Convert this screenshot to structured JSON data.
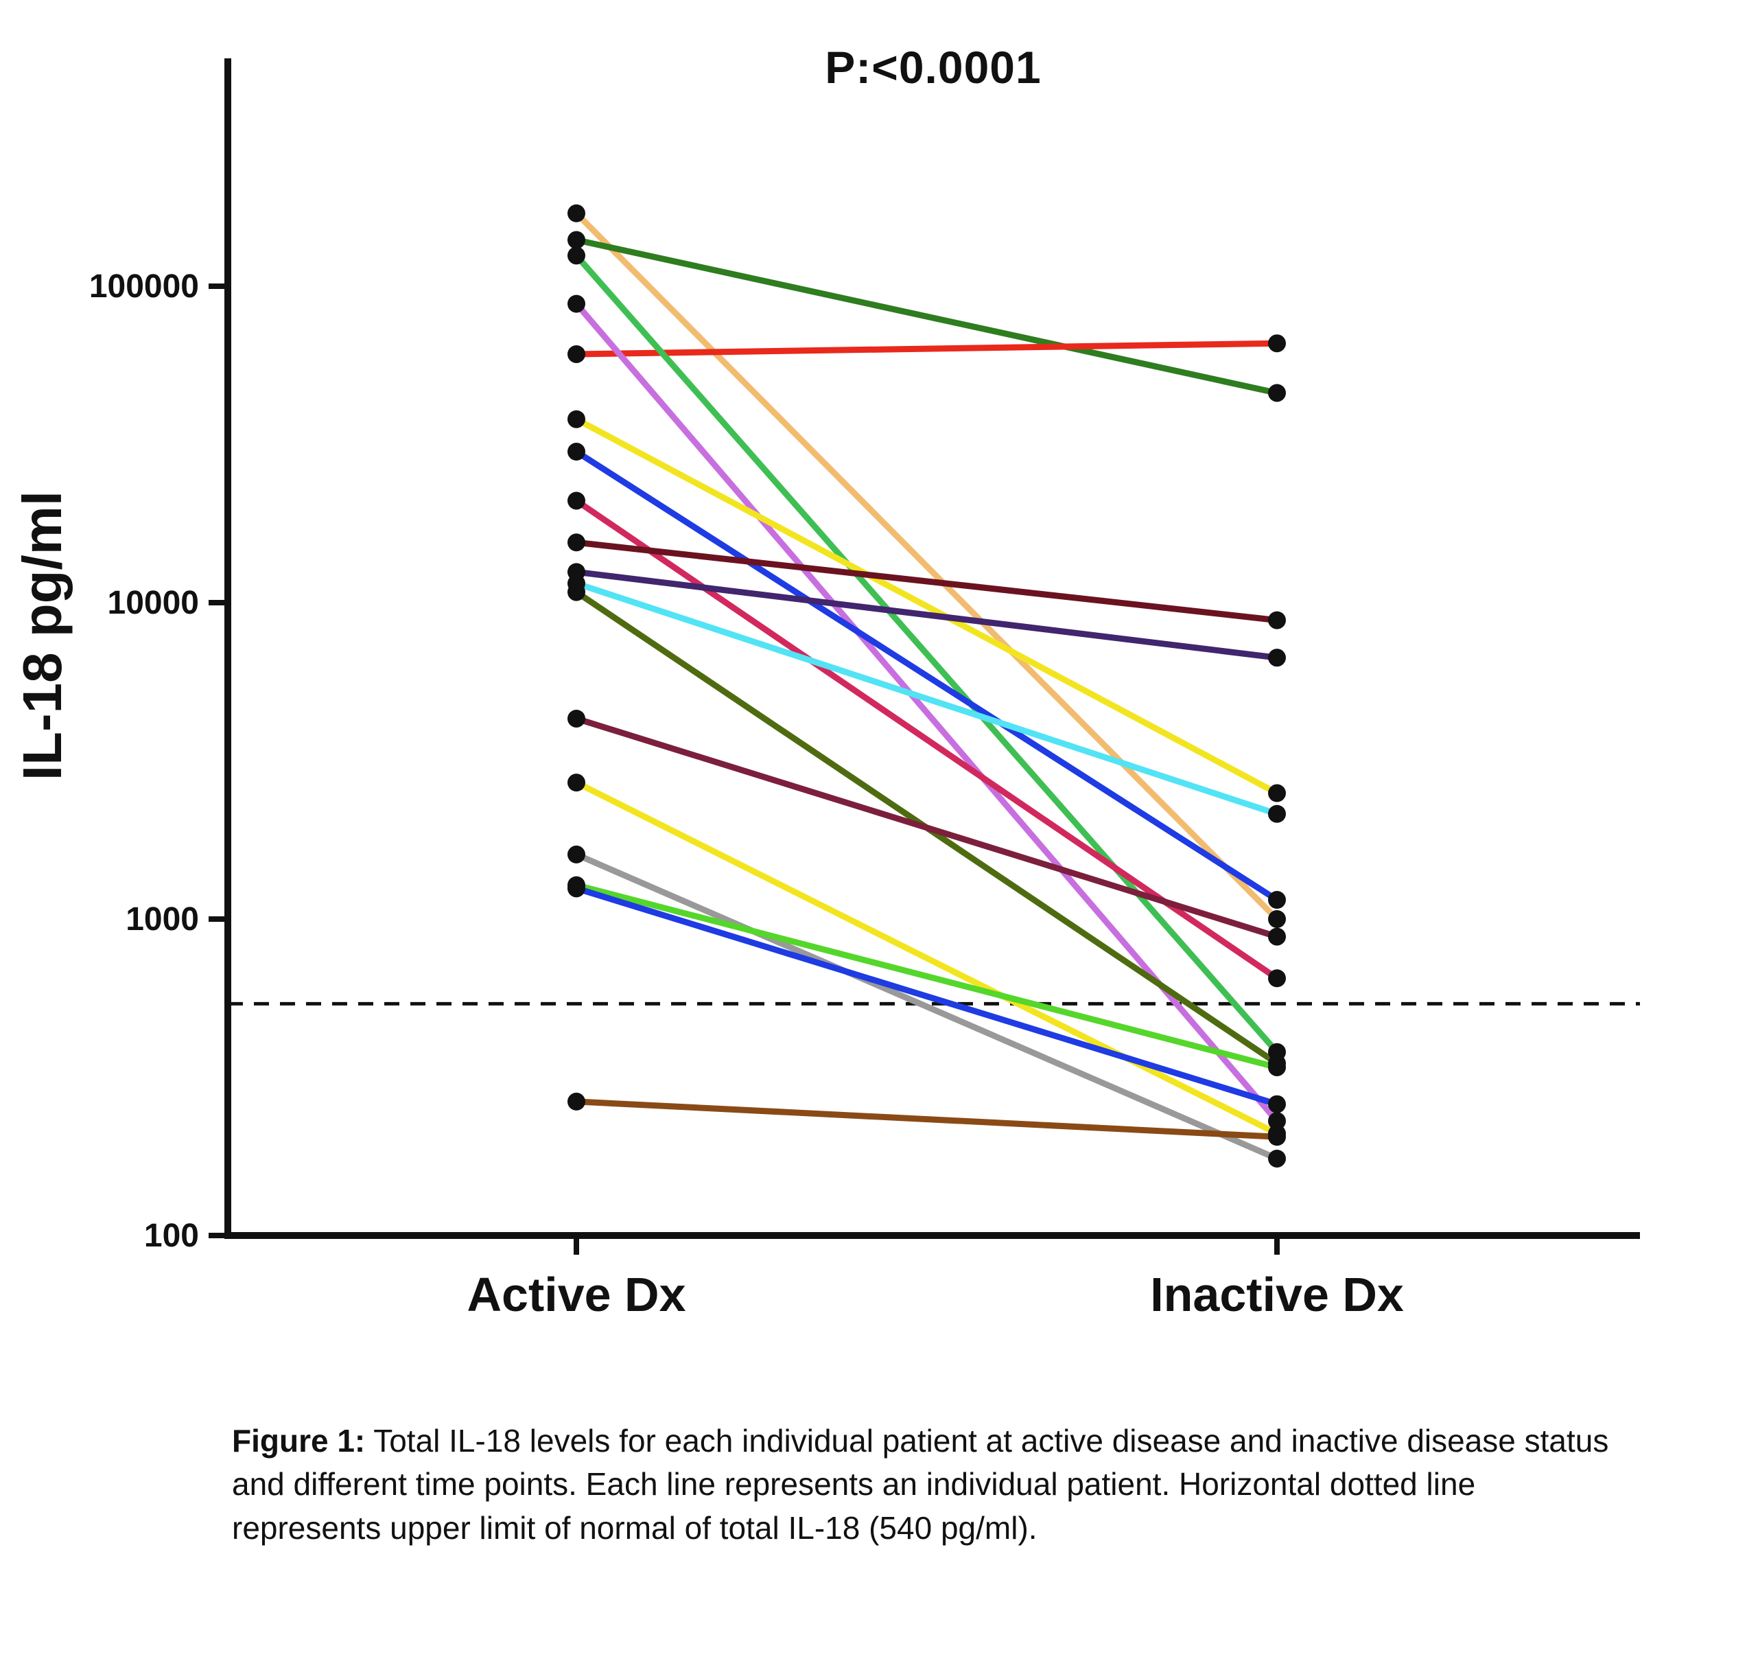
{
  "figure": {
    "caption_label": "Figure 1:",
    "caption_text": " Total IL-18 levels for each individual patient at active disease and inactive disease status and different time points. Each line represents an individual patient. Horizontal dotted line represents upper limit of normal of total IL-18 (540 pg/ml)."
  },
  "chart_data": {
    "type": "line",
    "subtype": "paired-before-after",
    "title": "P:<0.0001",
    "xlabel": "",
    "ylabel": "IL-18 pg/ml",
    "categories": [
      "Active Dx",
      "Inactive Dx"
    ],
    "yscale": "log",
    "ylim": [
      100,
      300000
    ],
    "grid": false,
    "legend": "none",
    "yticks": [
      {
        "value": 100000,
        "label": "100000"
      },
      {
        "value": 10000,
        "label": "10000"
      },
      {
        "value": 1000,
        "label": "1000"
      },
      {
        "value": 100,
        "label": "100"
      }
    ],
    "normal_limit": {
      "value": 540,
      "label": "upper limit of normal (540 pg/ml)",
      "style": "dashed"
    },
    "point_color": "#111111",
    "series": [
      {
        "name": "patient-1",
        "color": "#F2BC70",
        "values": [
          170000,
          1000
        ]
      },
      {
        "name": "patient-2",
        "color": "#2E7D1F",
        "values": [
          140000,
          46000
        ]
      },
      {
        "name": "patient-3",
        "color": "#E8291C",
        "values": [
          61000,
          66000
        ]
      },
      {
        "name": "patient-4",
        "color": "#3FBF53",
        "values": [
          125000,
          380
        ]
      },
      {
        "name": "patient-5",
        "color": "#C86FE0",
        "values": [
          88000,
          230
        ]
      },
      {
        "name": "patient-6",
        "color": "#F2E520",
        "values": [
          38000,
          2500
        ]
      },
      {
        "name": "patient-7",
        "color": "#1F3BE3",
        "values": [
          30000,
          1150
        ]
      },
      {
        "name": "patient-8",
        "color": "#D1295E",
        "values": [
          21000,
          650
        ]
      },
      {
        "name": "patient-9",
        "color": "#6B1220",
        "values": [
          15500,
          8800
        ]
      },
      {
        "name": "patient-10",
        "color": "#41256E",
        "values": [
          12500,
          6700
        ]
      },
      {
        "name": "patient-11",
        "color": "#52E3F5",
        "values": [
          11500,
          2150
        ]
      },
      {
        "name": "patient-12",
        "color": "#4F6B10",
        "values": [
          10800,
          350
        ]
      },
      {
        "name": "patient-13",
        "color": "#7C1F3C",
        "values": [
          4300,
          880
        ]
      },
      {
        "name": "patient-14",
        "color": "#F2E520",
        "values": [
          2700,
          210
        ]
      },
      {
        "name": "patient-15",
        "color": "#999999",
        "values": [
          1600,
          175
        ]
      },
      {
        "name": "patient-16",
        "color": "#55D62B",
        "values": [
          1280,
          340
        ]
      },
      {
        "name": "patient-17",
        "color": "#1F3BE3",
        "values": [
          1250,
          260
        ]
      },
      {
        "name": "patient-18",
        "color": "#8A4A16",
        "values": [
          265,
          205
        ]
      }
    ]
  }
}
